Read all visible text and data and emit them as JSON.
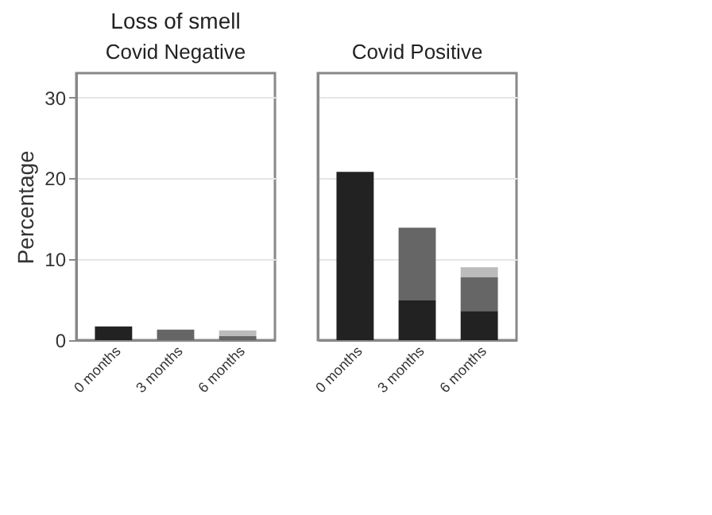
{
  "chart_data": [
    {
      "type": "bar",
      "title": "Loss of smell",
      "subtitle": "Covid Negative",
      "ylabel": "Percentage",
      "categories": [
        "0 months",
        "3 months",
        "6 months"
      ],
      "stacked": true,
      "ylim": [
        0,
        33
      ],
      "yticks": [
        0,
        10,
        20,
        30
      ],
      "grid": "y",
      "series": [
        {
          "color": "#222222",
          "values": [
            1.7,
            null,
            null
          ]
        },
        {
          "color": "#666666",
          "values": [
            null,
            1.3,
            0.5
          ]
        },
        {
          "color": "#bbbbbb",
          "values": [
            null,
            null,
            0.7
          ]
        }
      ]
    },
    {
      "type": "bar",
      "subtitle": "Covid Positive",
      "categories": [
        "0 months",
        "3 months",
        "6 months"
      ],
      "stacked": true,
      "ylim": [
        0,
        33
      ],
      "yticks": [
        0,
        10,
        20,
        30
      ],
      "grid": "y",
      "tick_labels": "x",
      "series": [
        {
          "color": "#222222",
          "values": [
            20.8,
            4.9,
            3.6
          ]
        },
        {
          "color": "#666666",
          "values": [
            null,
            9.0,
            4.2
          ]
        },
        {
          "color": "#bbbbbb",
          "values": [
            null,
            null,
            1.2
          ]
        }
      ]
    }
  ]
}
